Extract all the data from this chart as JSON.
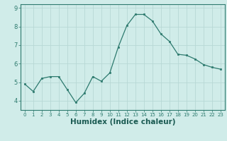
{
  "x": [
    0,
    1,
    2,
    3,
    4,
    5,
    6,
    7,
    8,
    9,
    10,
    11,
    12,
    13,
    14,
    15,
    16,
    17,
    18,
    19,
    20,
    21,
    22,
    23
  ],
  "y": [
    4.9,
    4.5,
    5.2,
    5.3,
    5.3,
    4.6,
    3.9,
    4.4,
    5.3,
    5.05,
    5.5,
    6.9,
    8.05,
    8.65,
    8.65,
    8.3,
    7.6,
    7.2,
    6.5,
    6.45,
    6.25,
    5.95,
    5.8,
    5.7
  ],
  "xlabel": "Humidex (Indice chaleur)",
  "ylim": [
    3.5,
    9.2
  ],
  "xlim": [
    -0.5,
    23.5
  ],
  "yticks": [
    4,
    5,
    6,
    7,
    8,
    9
  ],
  "xticks": [
    0,
    1,
    2,
    3,
    4,
    5,
    6,
    7,
    8,
    9,
    10,
    11,
    12,
    13,
    14,
    15,
    16,
    17,
    18,
    19,
    20,
    21,
    22,
    23
  ],
  "line_color": "#2d7a6e",
  "marker_color": "#2d7a6e",
  "bg_color": "#d0ece9",
  "grid_color": "#b8d8d5",
  "axis_color": "#2d7a6e",
  "tick_color": "#2d7a6e",
  "xlabel_color": "#1a5a52",
  "xlabel_fontsize": 7.5,
  "tick_fontsize_x": 5.0,
  "tick_fontsize_y": 6.0
}
